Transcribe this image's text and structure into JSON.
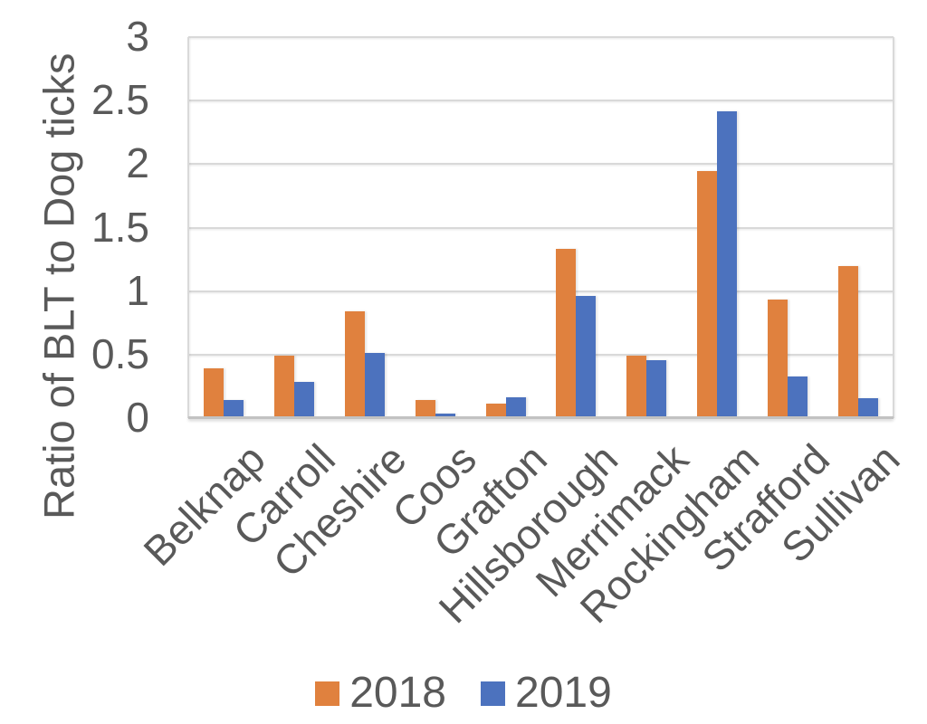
{
  "chart_data": {
    "type": "bar",
    "title": "",
    "xlabel": "",
    "ylabel": "Ratio of BLT to Dog ticks",
    "categories": [
      "Belknap",
      "Carroll",
      "Cheshire",
      "Coos",
      "Grafton",
      "Hillsborough",
      "Merrimack",
      "Rockingham",
      "Strafford",
      "Sullivan"
    ],
    "series": [
      {
        "name": "2018",
        "color": "#E0813E",
        "values": [
          0.38,
          0.48,
          0.83,
          0.13,
          0.1,
          1.32,
          0.48,
          1.93,
          0.92,
          1.18
        ]
      },
      {
        "name": "2019",
        "color": "#4C72BE",
        "values": [
          0.13,
          0.27,
          0.5,
          0.02,
          0.15,
          0.95,
          0.44,
          2.4,
          0.31,
          0.14
        ]
      }
    ],
    "ylim": [
      0,
      3
    ],
    "ytick_interval": 0.5,
    "yticks": [
      "0",
      "0.5",
      "1",
      "1.5",
      "2",
      "2.5",
      "3"
    ],
    "grid": true,
    "legend_position": "bottom",
    "x_label_rotation_deg": 45
  },
  "style_colors": {
    "series_2018": "#E0813E",
    "series_2019": "#4C72BE",
    "text_gray": "#595959",
    "gridline_gray": "#D9D9D9",
    "axis_line_gray": "#C2C2C2",
    "background": "#FFFFFF"
  }
}
